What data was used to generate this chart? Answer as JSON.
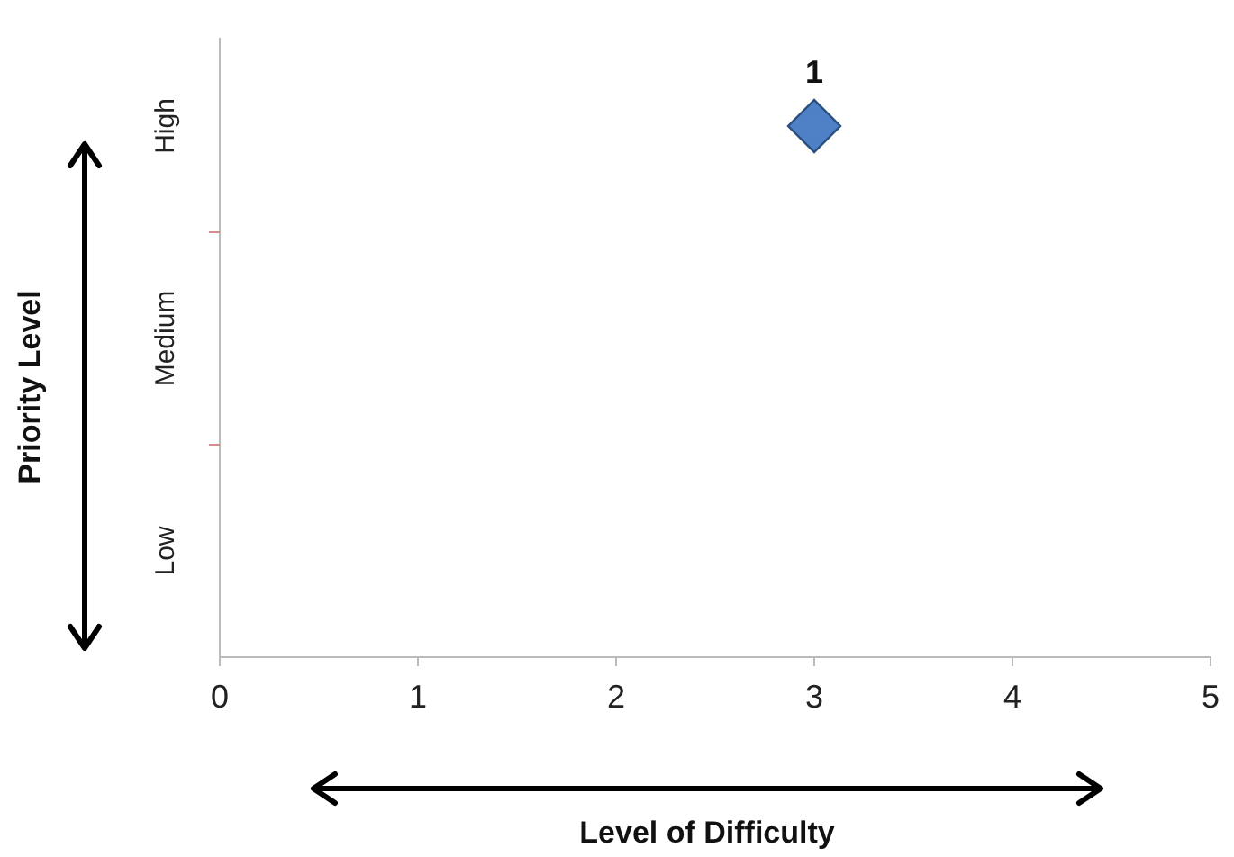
{
  "chart_data": {
    "type": "scatter",
    "orientation": "horizontal",
    "xlabel": "Level of Difficulty",
    "ylabel": "Priority Level",
    "categories": [
      "High",
      "Medium",
      "Low"
    ],
    "series": [
      {
        "color": "#4f81c7",
        "values": [
          3,
          null,
          null
        ]
      }
    ],
    "xlim": [
      0,
      5
    ],
    "xticks": [
      0,
      1,
      2,
      3,
      4,
      5
    ],
    "marker": "diamond",
    "annotations": [
      {
        "text": "1",
        "x": 3,
        "y": "High"
      }
    ]
  }
}
